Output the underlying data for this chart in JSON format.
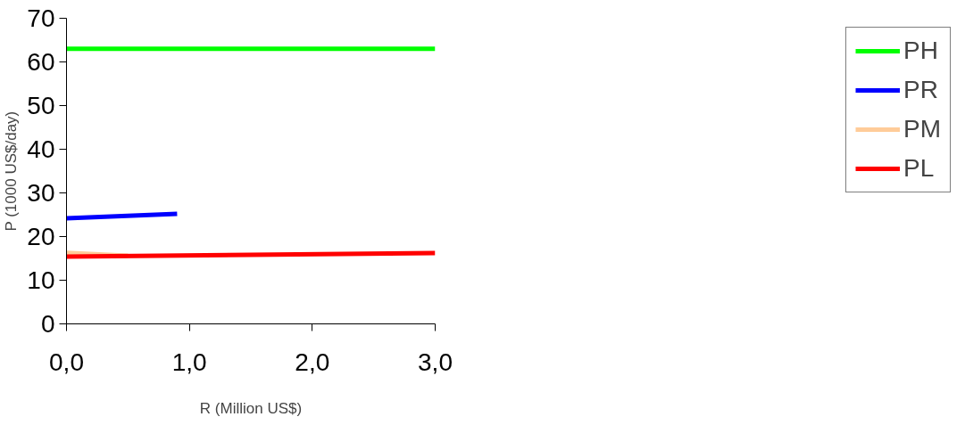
{
  "chart_data": {
    "type": "line",
    "xlabel": "R (Million US$)",
    "ylabel": "P (1000 US$/day)",
    "series": [
      {
        "name": "PH",
        "color": "#00ff00",
        "x": [
          0,
          3
        ],
        "values": [
          63,
          63
        ]
      },
      {
        "name": "PR",
        "color": "#0000ff",
        "x": [
          0,
          0.9
        ],
        "values": [
          24.2,
          25.2
        ]
      },
      {
        "name": "PM",
        "color": "#ffcc99",
        "x": [
          0,
          0.5
        ],
        "values": [
          16.3,
          15.6
        ]
      },
      {
        "name": "PL",
        "color": "#ff0000",
        "x": [
          0,
          1.5,
          3
        ],
        "values": [
          15.4,
          15.8,
          16.2
        ]
      }
    ],
    "xlim": [
      0,
      3
    ],
    "ylim": [
      0,
      70
    ],
    "xticks": [
      {
        "value": 0,
        "label": "0,0"
      },
      {
        "value": 1,
        "label": "1,0"
      },
      {
        "value": 2,
        "label": "2,0"
      },
      {
        "value": 3,
        "label": "3,0"
      }
    ],
    "yticks": [
      0,
      10,
      20,
      30,
      40,
      50,
      60,
      70
    ],
    "grid": false,
    "legend": "right",
    "marker": "none",
    "line_style": "solid"
  }
}
